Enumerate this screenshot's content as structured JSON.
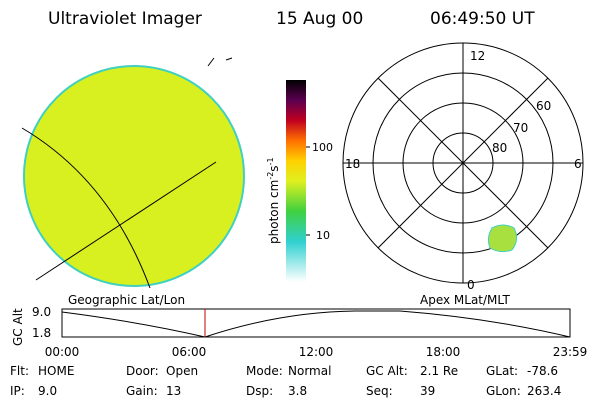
{
  "header": {
    "instrument": "Ultraviolet Imager",
    "date": "15 Aug 00",
    "time": "06:49:50 UT"
  },
  "colorbar": {
    "label": "photon cm",
    "exp1": "-2",
    "unit2": "s",
    "exp2": "-1",
    "ticks": [
      "100",
      "10"
    ]
  },
  "polar": {
    "mlt_labels": [
      "12",
      "18",
      "6",
      "0"
    ],
    "lat_labels": [
      "60",
      "70",
      "80"
    ]
  },
  "captions": {
    "left": "Geographic Lat/Lon",
    "right": "Apex MLat/MLT"
  },
  "altitude_plot": {
    "ylabel": "GC Alt",
    "yticks": [
      "9.0",
      "1.8"
    ],
    "xticks": [
      "00:00",
      "06:00",
      "12:00",
      "18:00",
      "23:59"
    ]
  },
  "status": {
    "rows": [
      [
        [
          "Flt:",
          "HOME"
        ],
        [
          "Door:",
          "Open"
        ],
        [
          "Mode:",
          "Normal"
        ],
        [
          "GC Alt:",
          "2.1 Re"
        ],
        [
          "GLat:",
          "-78.6"
        ]
      ],
      [
        [
          "IP:",
          "9.0"
        ],
        [
          "Gain:",
          "13"
        ],
        [
          "Dsp:",
          "3.8"
        ],
        [
          "Seq:",
          "39"
        ],
        [
          "GLon:",
          "263.4"
        ]
      ]
    ]
  }
}
